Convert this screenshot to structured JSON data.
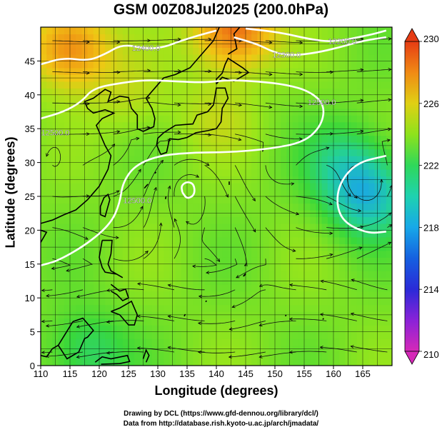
{
  "page": {
    "title": "GSM 00Z08Jul2025 (200.0hPa)",
    "credit_line1": "Drawing by DCL (https://www.gfd-dennou.org/library/dcl/)",
    "credit_line2": "Data from http://database.rish.kyoto-u.ac.jp/arch/jmadata/"
  },
  "chart_data": {
    "type": "heatmap",
    "title": "GSM 00Z08Jul2025 (200.0hPa)",
    "xlabel": "Longitude (degrees)",
    "ylabel": "Latitude  (degrees)",
    "xlim": [
      110,
      170
    ],
    "ylim": [
      0,
      50
    ],
    "x_ticks": [
      110,
      115,
      120,
      125,
      130,
      135,
      140,
      145,
      150,
      155,
      160,
      165
    ],
    "y_ticks": [
      0,
      5,
      10,
      15,
      20,
      25,
      30,
      35,
      40,
      45
    ],
    "grid": true,
    "overlays": [
      "coastlines",
      "streamlines",
      "geopotential height contours"
    ],
    "colorbar": {
      "ticks": [
        210,
        214,
        218,
        222,
        226,
        230
      ],
      "range": [
        210,
        230
      ],
      "colors": [
        "#d629b8",
        "#6a1de0",
        "#1433d6",
        "#1aa6e6",
        "#22cfa0",
        "#3ad83a",
        "#9ce61a",
        "#f0c814",
        "#f08a14",
        "#e63c14"
      ]
    },
    "contours": [
      {
        "label": "12200.0",
        "lon": 161.5,
        "lat": 47.5
      },
      {
        "label": "12300.0",
        "lon": 152.0,
        "lat": 45.5
      },
      {
        "label": "12400.0",
        "lon": 128.0,
        "lat": 46.5
      },
      {
        "label": "12500.0",
        "lon": 158.0,
        "lat": 38.5
      },
      {
        "label": "12500.0",
        "lon": 112.5,
        "lat": 34.0
      },
      {
        "label": "12500.0",
        "lon": 126.5,
        "lat": 24.0
      }
    ],
    "field_features": [
      {
        "kind": "max",
        "lon": 115,
        "lat": 47,
        "value": 228
      },
      {
        "kind": "max",
        "lon": 143,
        "lat": 50,
        "value": 229
      },
      {
        "kind": "min",
        "lon": 166,
        "lat": 25,
        "value": 218
      },
      {
        "kind": "min",
        "lon": 162,
        "lat": 30,
        "value": 220
      },
      {
        "kind": "min",
        "lon": 118,
        "lat": 2,
        "value": 220
      },
      {
        "kind": "max",
        "lon": 140,
        "lat": 37,
        "value": 224
      },
      {
        "kind": "max",
        "lon": 125,
        "lat": 40,
        "value": 224
      }
    ]
  }
}
